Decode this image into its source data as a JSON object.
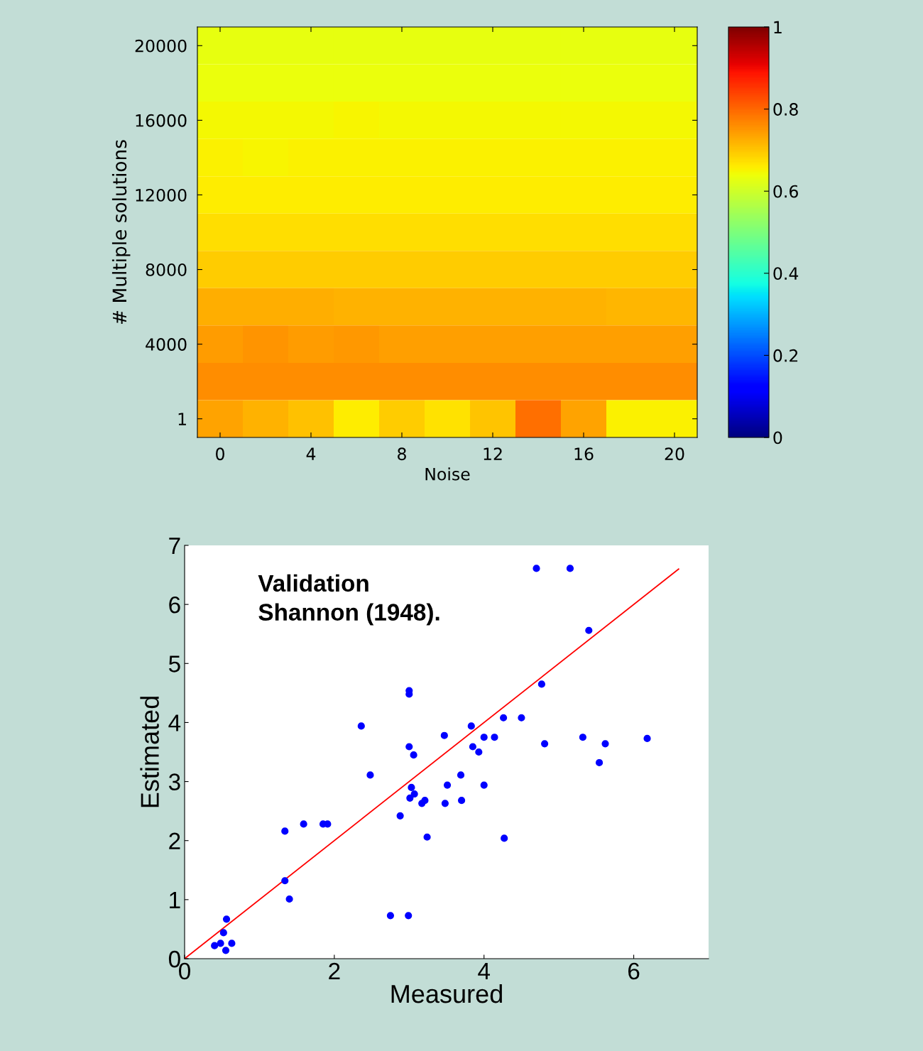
{
  "chart_data": [
    {
      "type": "heatmap",
      "xlabel": "Noise",
      "ylabel": "# Multiple solutions",
      "categories": [
        "0",
        null,
        "4",
        null,
        "8",
        null,
        "12",
        null,
        "16",
        null,
        "20"
      ],
      "y_categories": [
        "20000",
        null,
        "16000",
        null,
        "12000",
        null,
        "8000",
        null,
        "4000",
        null,
        "1"
      ],
      "cells": [
        [
          0.63,
          0.63,
          0.63,
          0.63,
          0.63,
          0.63,
          0.63,
          0.63,
          0.63,
          0.63,
          0.63
        ],
        [
          0.635,
          0.635,
          0.635,
          0.635,
          0.635,
          0.635,
          0.635,
          0.635,
          0.635,
          0.635,
          0.635
        ],
        [
          0.645,
          0.645,
          0.645,
          0.65,
          0.645,
          0.645,
          0.645,
          0.645,
          0.645,
          0.645,
          0.645
        ],
        [
          0.655,
          0.65,
          0.655,
          0.655,
          0.655,
          0.655,
          0.655,
          0.655,
          0.655,
          0.655,
          0.655
        ],
        [
          0.66,
          0.66,
          0.66,
          0.66,
          0.66,
          0.66,
          0.66,
          0.66,
          0.66,
          0.66,
          0.657
        ],
        [
          0.672,
          0.672,
          0.672,
          0.672,
          0.672,
          0.672,
          0.672,
          0.672,
          0.672,
          0.672,
          0.672
        ],
        [
          0.693,
          0.693,
          0.693,
          0.693,
          0.693,
          0.693,
          0.693,
          0.693,
          0.693,
          0.693,
          0.693
        ],
        [
          0.725,
          0.725,
          0.725,
          0.72,
          0.72,
          0.72,
          0.72,
          0.72,
          0.72,
          0.715,
          0.715
        ],
        [
          0.745,
          0.75,
          0.745,
          0.748,
          0.74,
          0.74,
          0.74,
          0.74,
          0.742,
          0.742,
          0.742
        ],
        [
          0.76,
          0.76,
          0.76,
          0.76,
          0.76,
          0.76,
          0.76,
          0.76,
          0.76,
          0.76,
          0.76
        ],
        [
          0.735,
          0.72,
          0.705,
          0.66,
          0.695,
          0.67,
          0.7,
          0.79,
          0.735,
          0.655,
          0.655
        ]
      ],
      "clim": [
        0,
        1
      ],
      "cticks": [
        0,
        0.2,
        0.4,
        0.6,
        0.8,
        1
      ]
    },
    {
      "type": "scatter",
      "xlabel": "Measured",
      "ylabel": "Estimated",
      "xlim": [
        0,
        7
      ],
      "ylim": [
        0,
        7
      ],
      "xticks": [
        0,
        2,
        4,
        6
      ],
      "yticks": [
        0,
        1,
        2,
        3,
        4,
        5,
        6,
        7
      ],
      "annotations": [
        "Validation\nShannon (1948)."
      ],
      "grid": false,
      "legend": false,
      "series": [
        {
          "type": "scatter",
          "color": "#0000ff",
          "marker": "circle",
          "x": [
            0.4,
            0.48,
            0.55,
            0.63,
            0.52,
            0.56,
            1.34,
            1.34,
            1.4,
            1.59,
            1.85,
            1.91,
            2.36,
            2.48,
            2.75,
            2.88,
            2.99,
            3.0,
            3.0,
            3.0,
            3.06,
            3.03,
            3.07,
            3.01,
            3.17,
            3.21,
            3.24,
            3.47,
            3.48,
            3.51,
            3.69,
            3.7,
            3.83,
            3.85,
            3.93,
            4.0,
            4.0,
            4.14,
            4.26,
            4.27,
            4.5,
            4.7,
            4.77,
            4.81,
            5.15,
            5.32,
            5.4,
            5.54,
            5.62,
            6.18
          ],
          "values": [
            0.22,
            0.26,
            0.14,
            0.26,
            0.44,
            0.67,
            2.16,
            1.32,
            1.01,
            2.28,
            2.28,
            2.28,
            3.94,
            3.11,
            0.73,
            2.42,
            0.73,
            4.54,
            4.48,
            3.59,
            3.45,
            2.9,
            2.79,
            2.72,
            2.63,
            2.68,
            2.06,
            3.78,
            2.63,
            2.94,
            3.11,
            2.68,
            3.94,
            3.59,
            3.5,
            3.75,
            2.94,
            3.75,
            4.08,
            2.04,
            4.08,
            6.61,
            4.65,
            3.64,
            6.61,
            3.75,
            5.56,
            3.32,
            3.64,
            3.73
          ]
        },
        {
          "type": "line",
          "color": "#ff0000",
          "x": [
            0,
            6.6
          ],
          "values": [
            0,
            6.6
          ]
        }
      ]
    }
  ]
}
